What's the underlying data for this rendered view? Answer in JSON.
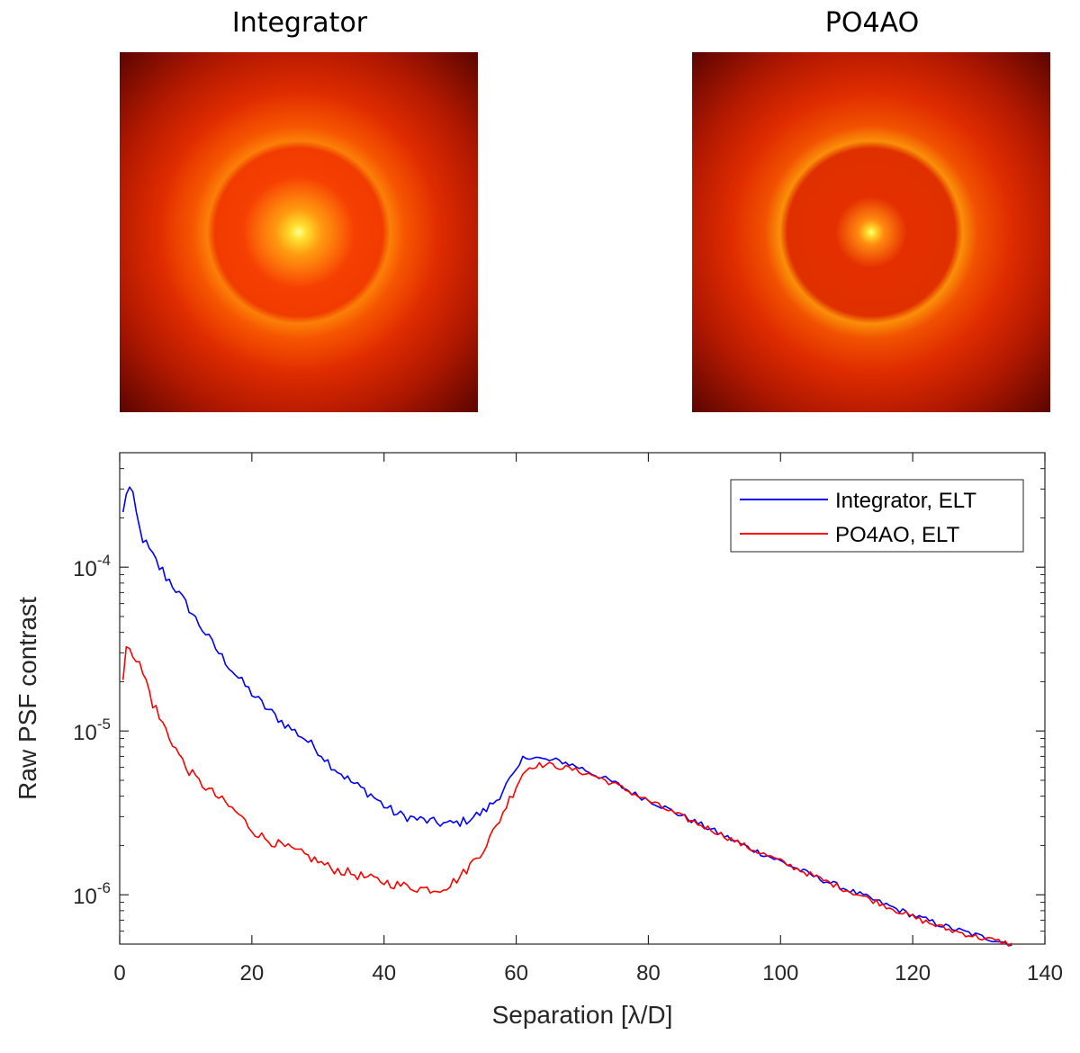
{
  "images": {
    "left_title": "Integrator",
    "right_title": "PO4AO"
  },
  "chart_data": {
    "type": "line",
    "title": "",
    "xlabel": "Separation [λ/D]",
    "ylabel": "Raw PSF contrast",
    "xlim": [
      0,
      140
    ],
    "ylim": [
      5e-07,
      0.0005
    ],
    "yscale": "log",
    "xticks": [
      "0",
      "20",
      "40",
      "60",
      "80",
      "100",
      "120",
      "140"
    ],
    "yticks": [
      {
        "base": "10",
        "exp": "-4"
      },
      {
        "base": "10",
        "exp": "-5"
      },
      {
        "base": "10",
        "exp": "-6"
      }
    ],
    "legend_position": "top-right",
    "series": [
      {
        "name": "Integrator, ELT",
        "color": "#0000ff",
        "x": [
          0.5,
          1,
          1.5,
          2,
          3,
          4,
          5,
          6,
          8,
          10,
          12,
          15,
          18,
          20,
          22,
          25,
          28,
          30,
          32,
          35,
          38,
          40,
          42,
          45,
          48,
          50,
          52,
          55,
          57,
          58,
          60,
          61,
          62,
          63,
          64,
          65,
          66,
          67,
          68,
          70,
          72,
          75,
          78,
          80,
          85,
          90,
          95,
          100,
          105,
          110,
          115,
          120,
          125,
          130,
          135
        ],
        "y": [
          0.00021,
          0.00029,
          0.0003,
          0.00026,
          0.00017,
          0.000135,
          0.000115,
          0.0001,
          7.8e-05,
          6e-05,
          4.5e-05,
          3e-05,
          2.1e-05,
          1.7e-05,
          1.4e-05,
          1.1e-05,
          9e-06,
          7.6e-06,
          6.2e-06,
          4.9e-06,
          4.1e-06,
          3.5e-06,
          3.1e-06,
          2.9e-06,
          2.75e-06,
          2.7e-06,
          2.8e-06,
          3.2e-06,
          3.8e-06,
          4.4e-06,
          5.6e-06,
          6.8e-06,
          7e-06,
          6.9e-06,
          6.7e-06,
          6.6e-06,
          6.6e-06,
          6.5e-06,
          6.3e-06,
          5.9e-06,
          5.4e-06,
          4.8e-06,
          4.1e-06,
          3.8e-06,
          3.05e-06,
          2.45e-06,
          1.95e-06,
          1.6e-06,
          1.3e-06,
          1.08e-06,
          9e-07,
          7.5e-07,
          6.4e-07,
          5.6e-07,
          5e-07
        ]
      },
      {
        "name": "PO4AO, ELT",
        "color": "#ff0000",
        "x": [
          0.5,
          1,
          1.5,
          2,
          3,
          4,
          5,
          6,
          8,
          10,
          12,
          15,
          18,
          20,
          22,
          25,
          28,
          30,
          32,
          35,
          38,
          40,
          42,
          45,
          48,
          50,
          52,
          55,
          57,
          58,
          60,
          61,
          62,
          63,
          64,
          65,
          66,
          68,
          70,
          72,
          75,
          78,
          80,
          85,
          90,
          95,
          100,
          105,
          110,
          115,
          120,
          125,
          130,
          135
        ],
        "y": [
          2e-05,
          3e-05,
          3.4e-05,
          3.1e-05,
          2.5e-05,
          2e-05,
          1.5e-05,
          1.2e-05,
          8.5e-06,
          6e-06,
          4.9e-06,
          3.9e-06,
          3.1e-06,
          2.5e-06,
          2.2e-06,
          1.95e-06,
          1.75e-06,
          1.6e-06,
          1.45e-06,
          1.35e-06,
          1.25e-06,
          1.2e-06,
          1.15e-06,
          1.1e-06,
          1.08e-06,
          1.15e-06,
          1.35e-06,
          1.9e-06,
          2.6e-06,
          3.2e-06,
          4.6e-06,
          5.5e-06,
          6e-06,
          6.2e-06,
          6.2e-06,
          6.2e-06,
          6.1e-06,
          5.9e-06,
          5.6e-06,
          5.3e-06,
          4.7e-06,
          4.1e-06,
          3.75e-06,
          3e-06,
          2.45e-06,
          1.95e-06,
          1.6e-06,
          1.3e-06,
          1.07e-06,
          8.9e-07,
          7.3e-07,
          6.2e-07,
          5.5e-07,
          5e-07
        ]
      }
    ]
  }
}
